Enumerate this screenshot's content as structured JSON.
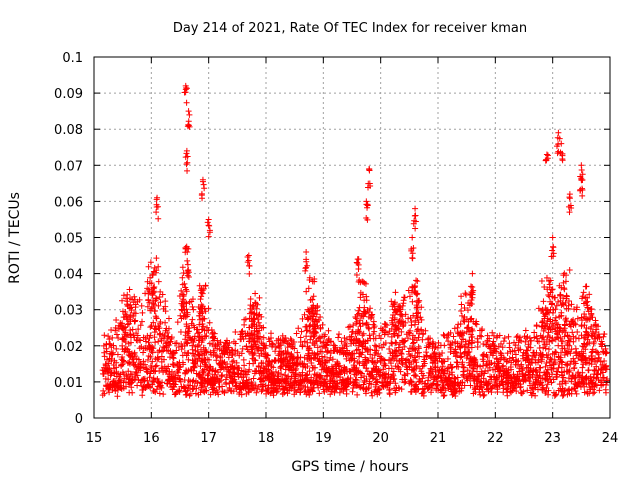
{
  "chart_data": {
    "type": "scatter",
    "title": "Day 214 of 2021, Rate Of TEC Index for receiver kman",
    "xlabel": "GPS time / hours",
    "ylabel": "ROTI / TECUs",
    "xlim": [
      15,
      24
    ],
    "ylim": [
      0,
      0.1
    ],
    "xticks": [
      15,
      16,
      17,
      18,
      19,
      20,
      21,
      22,
      23,
      24
    ],
    "yticks": [
      0,
      0.01,
      0.02,
      0.03,
      0.04,
      0.05,
      0.06,
      0.07,
      0.08,
      0.09,
      0.1
    ],
    "xtick_labels": [
      "15",
      "16",
      "17",
      "18",
      "19",
      "20",
      "21",
      "22",
      "23",
      "24"
    ],
    "ytick_labels": [
      "0",
      "0.01",
      "0.02",
      "0.03",
      "0.04",
      "0.05",
      "0.06",
      "0.07",
      "0.08",
      "0.09",
      "0.1"
    ],
    "grid": true,
    "marker": "+",
    "series": [
      {
        "name": "ROTI",
        "color": "#ff0000",
        "note": "dense cloud of ~thousands of points; baseline 0.005-0.025 across 15.2-24, with spikes",
        "peaks": [
          {
            "x": 16.6,
            "y": 0.092
          },
          {
            "x": 16.65,
            "y": 0.085
          },
          {
            "x": 16.62,
            "y": 0.074
          },
          {
            "x": 16.9,
            "y": 0.066
          },
          {
            "x": 16.1,
            "y": 0.061
          },
          {
            "x": 17.0,
            "y": 0.055
          },
          {
            "x": 19.8,
            "y": 0.069
          },
          {
            "x": 19.75,
            "y": 0.06
          },
          {
            "x": 20.6,
            "y": 0.058
          },
          {
            "x": 20.55,
            "y": 0.05
          },
          {
            "x": 21.6,
            "y": 0.04
          },
          {
            "x": 22.9,
            "y": 0.073
          },
          {
            "x": 23.1,
            "y": 0.079
          },
          {
            "x": 23.15,
            "y": 0.076
          },
          {
            "x": 23.5,
            "y": 0.07
          },
          {
            "x": 23.5,
            "y": 0.066
          },
          {
            "x": 23.3,
            "y": 0.062
          },
          {
            "x": 23.0,
            "y": 0.05
          },
          {
            "x": 18.7,
            "y": 0.046
          },
          {
            "x": 17.7,
            "y": 0.045
          },
          {
            "x": 19.6,
            "y": 0.044
          }
        ]
      }
    ]
  }
}
